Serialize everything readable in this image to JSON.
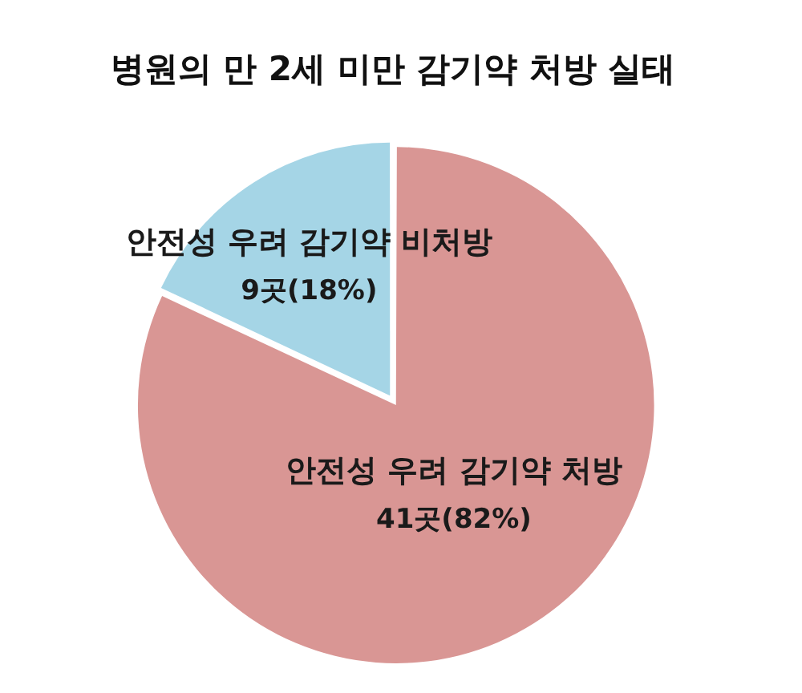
{
  "chart_data": {
    "type": "pie",
    "title": "병원의 만 2세 미만 감기약 처방 실태",
    "categories": [
      "안전성 우려 감기약 처방",
      "안전성 우려 감기약 비처방"
    ],
    "values": [
      41,
      9
    ],
    "colors": [
      "#d99694",
      "#a5d5e6"
    ],
    "value_labels": [
      "41곳(82%)",
      "9곳(18%)"
    ],
    "legend": false
  }
}
